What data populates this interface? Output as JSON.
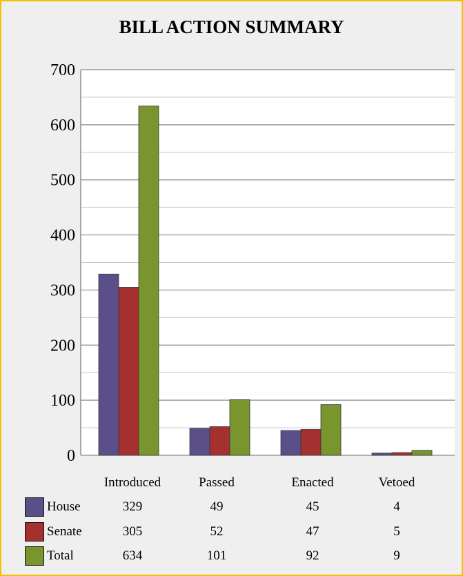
{
  "chart_data": {
    "type": "bar",
    "title": "BILL ACTION SUMMARY",
    "categories": [
      "Introduced",
      "Passed",
      "Enacted",
      "Vetoed"
    ],
    "series": [
      {
        "name": "House",
        "color": "#5b4f8a",
        "values": [
          329,
          49,
          45,
          4
        ]
      },
      {
        "name": "Senate",
        "color": "#a53030",
        "values": [
          305,
          52,
          47,
          5
        ]
      },
      {
        "name": "Total",
        "color": "#79952e",
        "values": [
          634,
          101,
          92,
          9
        ]
      }
    ],
    "ylim": [
      0,
      700
    ],
    "yticks": [
      0,
      100,
      200,
      300,
      400,
      500,
      600,
      700
    ],
    "grid": true,
    "legend": "bottom data table"
  }
}
